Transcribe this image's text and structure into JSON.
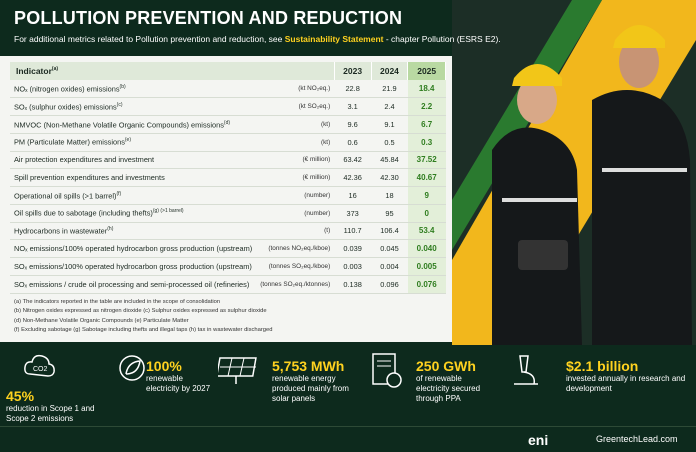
{
  "header": {
    "title": "POLLUTION PREVENTION AND REDUCTION",
    "subtitle": "For additional metrics related to Pollution prevention and reduction, see",
    "link": "Sustainability Statement",
    "subtitle_end": "- chapter Pollution (ESRS E2)."
  },
  "table": {
    "columns": [
      "Indicator",
      "2023",
      "2024",
      "2025"
    ],
    "indicator_note": "(a)",
    "rows": [
      {
        "indicator": "NOₓ (nitrogen oxides) emissions",
        "note": "(b)",
        "unit": "(kt NO₂eq.)",
        "values": [
          "22.8",
          "21.9",
          "18.4"
        ]
      },
      {
        "indicator": "SOₓ (sulphur oxides) emissions",
        "note": "(c)",
        "unit": "(kt SO₂eq.)",
        "values": [
          "3.1",
          "2.4",
          "2.2"
        ]
      },
      {
        "indicator": "NMVOC (Non-Methane Volatile Organic Compounds) emissions",
        "note": "(d)",
        "unit": "(kt)",
        "values": [
          "9.6",
          "9.1",
          "6.7"
        ]
      },
      {
        "indicator": "PM (Particulate Matter) emissions",
        "note": "(e)",
        "unit": "(kt)",
        "values": [
          "0.6",
          "0.5",
          "0.3"
        ]
      },
      {
        "indicator": "Air protection expenditures and investment",
        "unit": "(€ million)",
        "values": [
          "63.42",
          "45.84",
          "37.52"
        ]
      },
      {
        "indicator": "Spill prevention expenditures and investments",
        "unit": "(€ million)",
        "values": [
          "42.36",
          "42.30",
          "40.67"
        ]
      },
      {
        "indicator": "Operational oil spills (>1 barrel)",
        "note": "(f)",
        "unit": "(number)",
        "values": [
          "16",
          "18",
          "9"
        ]
      },
      {
        "indicator": "Oil spills due to sabotage (including thefts)",
        "note": "(g) (>1 barrel)",
        "unit": "(number)",
        "values": [
          "373",
          "95",
          "0"
        ]
      },
      {
        "indicator": "Hydrocarbons in wastewater",
        "note": "(h)",
        "unit": "(t)",
        "values": [
          "110.7",
          "106.4",
          "53.4"
        ]
      },
      {
        "indicator": "NOₓ emissions/100% operated hydrocarbon gross production (upstream)",
        "unit": "(tonnes NO₂eq./kboe)",
        "values": [
          "0.039",
          "0.045",
          "0.040"
        ]
      },
      {
        "indicator": "SOₓ emissions/100% operated hydrocarbon gross production (upstream)",
        "unit": "(tonnes SO₂eq./kboe)",
        "values": [
          "0.003",
          "0.004",
          "0.005"
        ]
      },
      {
        "indicator": "SOₓ emissions / crude oil processing and semi-processed oil (refineries)",
        "unit": "(tonnes SO₂eq./ktonnes)",
        "values": [
          "0.138",
          "0.096",
          "0.076"
        ]
      }
    ]
  },
  "footnotes": [
    "(a)  The indicators reported in the table are included in the scope of consolidation",
    "(b)  Nitrogen oxides expressed as nitrogen dioxide    (c)  Sulphur oxides expressed as sulphur dioxide",
    "(d)  Non-Methane Volatile Organic Compounds    (e)  Particulate Matter",
    "(f)  Excluding sabotage   (g)  Sabotage including thefts and illegal taps   (h) tax in wastewater discharged"
  ],
  "stats": [
    {
      "value": "45%",
      "text": "reduction in Scope 1 and Scope 2 emissions"
    },
    {
      "value": "100%",
      "text": "renewable electricity by 2027"
    },
    {
      "value": "5,753 MWh",
      "text": "renewable energy produced mainly from solar panels"
    },
    {
      "value": "250 GWh",
      "text": "of renewable electricity secured through PPA"
    },
    {
      "value": "$2.1 billion",
      "text": "invested annually in research and development"
    }
  ],
  "footer": {
    "brand": "eni",
    "site": "GreentechLead.com"
  }
}
